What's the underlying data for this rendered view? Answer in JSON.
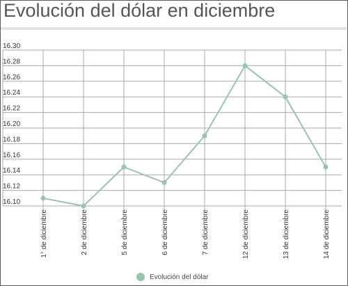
{
  "chart_data": {
    "type": "line",
    "title": "Evolución del dólar en diciembre",
    "categories": [
      "1° de diciembre",
      "2 de diciembre",
      "5 de diciembre",
      "6 de diciembre",
      "7 de diciembre",
      "12 de diciembre",
      "13 de diciembre",
      "14 de diciembre"
    ],
    "series": [
      {
        "name": "Evolución del dólar",
        "values": [
          16.11,
          16.1,
          16.15,
          16.13,
          16.19,
          16.28,
          16.24,
          16.15
        ]
      }
    ],
    "ylim": [
      16.1,
      16.3
    ],
    "yticks": [
      "16.10",
      "16.12",
      "16.14",
      "16.16",
      "16.18",
      "16.20",
      "16.22",
      "16.24",
      "16.26",
      "16.28",
      "16.30"
    ],
    "xlabel": "",
    "ylabel": "",
    "grid": true,
    "legend_position": "bottom-center"
  },
  "colors": {
    "series": "#99c4ad",
    "grid": "#aaaaaa",
    "axis": "#555555"
  }
}
